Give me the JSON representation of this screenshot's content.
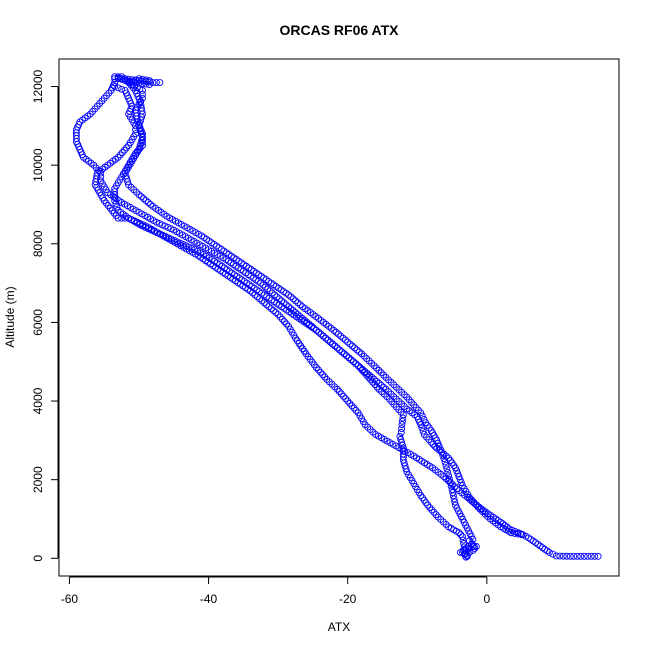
{
  "chart_data": {
    "type": "scatter",
    "title": "ORCAS RF06 ATX",
    "xlabel": "ATX",
    "ylabel": "Altitude (m)",
    "xlim": [
      -61.5,
      19
    ],
    "ylim": [
      -450,
      12700
    ],
    "x_ticks": [
      -60,
      -40,
      -20,
      0
    ],
    "y_ticks": [
      0,
      2000,
      4000,
      6000,
      8000,
      10000,
      12000
    ],
    "x_tick_labels": [
      "-60",
      "-40",
      "-20",
      "0"
    ],
    "y_tick_labels": [
      "0",
      "2000",
      "4000",
      "6000",
      "8000",
      "10000",
      "12000"
    ],
    "grid": false,
    "marker": "open-circle",
    "marker_color": "#0000ff",
    "series": [
      {
        "points": [
          [
            16,
            50
          ],
          [
            14,
            50
          ],
          [
            12,
            50
          ],
          [
            10,
            60
          ],
          [
            9,
            150
          ],
          [
            8,
            270
          ],
          [
            7,
            400
          ],
          [
            6,
            520
          ],
          [
            5.2,
            600
          ],
          [
            4.5,
            650
          ],
          [
            3.2,
            750
          ],
          [
            2.3,
            880
          ],
          [
            1.3,
            1000
          ],
          [
            0.2,
            1130
          ],
          [
            -0.8,
            1260
          ],
          [
            -1.8,
            1400
          ],
          [
            -2.8,
            1550
          ],
          [
            -4,
            1720
          ],
          [
            -5.2,
            1920
          ],
          [
            -6.2,
            2080
          ],
          [
            -7.8,
            2300
          ],
          [
            -10.5,
            2600
          ],
          [
            -13.5,
            2900
          ],
          [
            -16,
            3150
          ],
          [
            -17.5,
            3400
          ],
          [
            -18.5,
            3700
          ],
          [
            -20,
            4000
          ],
          [
            -21.5,
            4300
          ],
          [
            -23,
            4550
          ],
          [
            -24.5,
            4850
          ],
          [
            -26,
            5200
          ],
          [
            -27.5,
            5600
          ],
          [
            -28.5,
            5900
          ],
          [
            -30,
            6200
          ],
          [
            -32,
            6500
          ],
          [
            -34,
            6800
          ],
          [
            -36.5,
            7100
          ],
          [
            -39,
            7400
          ],
          [
            -41.5,
            7700
          ],
          [
            -44,
            7950
          ],
          [
            -46.5,
            8200
          ],
          [
            -49,
            8450
          ],
          [
            -51.5,
            8650
          ],
          [
            -53,
            8650
          ],
          [
            -55,
            9100
          ],
          [
            -56.3,
            9500
          ],
          [
            -56,
            9800
          ],
          [
            -54.5,
            10000
          ],
          [
            -53,
            10200
          ],
          [
            -51.5,
            10500
          ],
          [
            -50.5,
            10800
          ],
          [
            -50.5,
            11000
          ],
          [
            -51.5,
            11300
          ],
          [
            -51,
            11500
          ],
          [
            -51.5,
            11700
          ],
          [
            -52,
            11900
          ],
          [
            -53.5,
            12000
          ],
          [
            -53.5,
            12200
          ],
          [
            -52,
            12200
          ],
          [
            -50,
            12150
          ],
          [
            -48,
            12100
          ],
          [
            -47,
            12100
          ]
        ]
      },
      {
        "points": [
          [
            -2,
            300
          ],
          [
            -2.5,
            250
          ],
          [
            -3,
            200
          ],
          [
            -3.5,
            150
          ],
          [
            -3.2,
            120
          ],
          [
            -2.8,
            80
          ],
          [
            -3,
            30
          ],
          [
            -3.5,
            550
          ],
          [
            -4,
            650
          ],
          [
            -5.5,
            800
          ],
          [
            -7,
            1050
          ],
          [
            -8.5,
            1350
          ],
          [
            -9.5,
            1600
          ],
          [
            -10.5,
            1900
          ],
          [
            -11.5,
            2200
          ],
          [
            -12,
            2500
          ],
          [
            -12,
            2800
          ],
          [
            -12.5,
            3100
          ],
          [
            -12.3,
            3200
          ],
          [
            -12.2,
            3400
          ],
          [
            -12,
            3650
          ],
          [
            -13,
            3850
          ],
          [
            -14,
            4050
          ],
          [
            -15.5,
            4300
          ],
          [
            -17,
            4600
          ],
          [
            -18.5,
            4900
          ],
          [
            -20.5,
            5200
          ],
          [
            -22.5,
            5500
          ],
          [
            -24.5,
            5800
          ],
          [
            -26.5,
            6100
          ],
          [
            -28.5,
            6400
          ],
          [
            -30.5,
            6700
          ],
          [
            -32.5,
            7000
          ],
          [
            -35,
            7300
          ],
          [
            -37.5,
            7600
          ],
          [
            -40,
            7850
          ],
          [
            -42.5,
            8100
          ],
          [
            -45,
            8350
          ],
          [
            -47.5,
            8550
          ],
          [
            -50,
            8800
          ],
          [
            -52.5,
            9050
          ],
          [
            -54.5,
            9300
          ],
          [
            -55.5,
            9600
          ],
          [
            -55.5,
            9800
          ],
          [
            -56.5,
            10000
          ],
          [
            -58,
            10200
          ],
          [
            -58.5,
            10400
          ],
          [
            -59,
            10600
          ],
          [
            -59,
            10900
          ],
          [
            -58.5,
            11100
          ],
          [
            -57,
            11300
          ],
          [
            -56,
            11500
          ],
          [
            -55,
            11700
          ],
          [
            -54,
            11900
          ],
          [
            -53.5,
            12100
          ]
        ]
      },
      {
        "points": [
          [
            5,
            600
          ],
          [
            3.5,
            650
          ],
          [
            2,
            800
          ],
          [
            0.5,
            1000
          ],
          [
            -1,
            1250
          ],
          [
            -2.5,
            1550
          ],
          [
            -3.5,
            1850
          ],
          [
            -4.5,
            2300
          ],
          [
            -5.5,
            2550
          ],
          [
            -6.5,
            2700
          ],
          [
            -7.2,
            2800
          ],
          [
            -8,
            2950
          ],
          [
            -9,
            3150
          ],
          [
            -9.5,
            3400
          ],
          [
            -10,
            3600
          ],
          [
            -11.5,
            3800
          ],
          [
            -13,
            4050
          ],
          [
            -14.5,
            4300
          ],
          [
            -16.5,
            4600
          ],
          [
            -18.5,
            4900
          ],
          [
            -20.5,
            5200
          ],
          [
            -22.5,
            5500
          ],
          [
            -24.5,
            5800
          ],
          [
            -27,
            6100
          ],
          [
            -29.5,
            6400
          ],
          [
            -32,
            6700
          ],
          [
            -34.5,
            7000
          ],
          [
            -37,
            7300
          ],
          [
            -39.5,
            7600
          ],
          [
            -42,
            7850
          ],
          [
            -44.5,
            8050
          ],
          [
            -47,
            8250
          ],
          [
            -49.5,
            8450
          ],
          [
            -51.5,
            8650
          ],
          [
            -53,
            8850
          ],
          [
            -53.5,
            9100
          ],
          [
            -53.5,
            9400
          ],
          [
            -52.5,
            9700
          ],
          [
            -51.5,
            10000
          ],
          [
            -50.5,
            10300
          ],
          [
            -49.5,
            10500
          ],
          [
            -49.5,
            10800
          ],
          [
            -50.2,
            11100
          ],
          [
            -50.5,
            11400
          ],
          [
            -49.5,
            11700
          ],
          [
            -49.5,
            11900
          ],
          [
            -51,
            12050
          ],
          [
            -52.5,
            12250
          ],
          [
            -53.5,
            12250
          ],
          [
            -52,
            12150
          ],
          [
            -50.5,
            12100
          ],
          [
            -48.5,
            12050
          ]
        ]
      },
      {
        "points": [
          [
            -1.5,
            300
          ],
          [
            -2,
            200
          ],
          [
            -2.5,
            150
          ],
          [
            -2.8,
            50
          ],
          [
            -3.2,
            100
          ],
          [
            -3.8,
            150
          ],
          [
            -3,
            250
          ],
          [
            -2.2,
            350
          ],
          [
            -1.8,
            300
          ],
          [
            -2.5,
            450
          ],
          [
            -2,
            480
          ],
          [
            -4.5,
            1350
          ],
          [
            -5,
            1750
          ],
          [
            -5.5,
            2100
          ],
          [
            -6,
            2450
          ],
          [
            -6.5,
            2700
          ],
          [
            -7.2,
            3000
          ],
          [
            -8,
            3250
          ],
          [
            -8.8,
            3450
          ],
          [
            -9.5,
            3700
          ],
          [
            -10.5,
            3900
          ],
          [
            -11.5,
            4100
          ],
          [
            -13,
            4350
          ],
          [
            -14.5,
            4600
          ],
          [
            -16.2,
            4900
          ],
          [
            -18,
            5200
          ],
          [
            -20,
            5500
          ],
          [
            -22,
            5800
          ],
          [
            -24.2,
            6100
          ],
          [
            -26.5,
            6400
          ],
          [
            -28.5,
            6700
          ],
          [
            -31,
            7000
          ],
          [
            -33.5,
            7300
          ],
          [
            -36,
            7600
          ],
          [
            -38.5,
            7900
          ],
          [
            -41,
            8200
          ],
          [
            -43.5,
            8450
          ],
          [
            -46,
            8700
          ],
          [
            -48,
            8950
          ],
          [
            -50,
            9250
          ],
          [
            -51.5,
            9500
          ],
          [
            -52,
            9800
          ],
          [
            -51,
            10100
          ],
          [
            -50,
            10400
          ],
          [
            -49.5,
            10700
          ],
          [
            -50,
            11000
          ],
          [
            -49.5,
            11300
          ],
          [
            -49.8,
            11600
          ],
          [
            -50.5,
            11900
          ],
          [
            -51.5,
            12100
          ],
          [
            -50,
            12200
          ],
          [
            -48.5,
            12150
          ]
        ]
      }
    ]
  }
}
